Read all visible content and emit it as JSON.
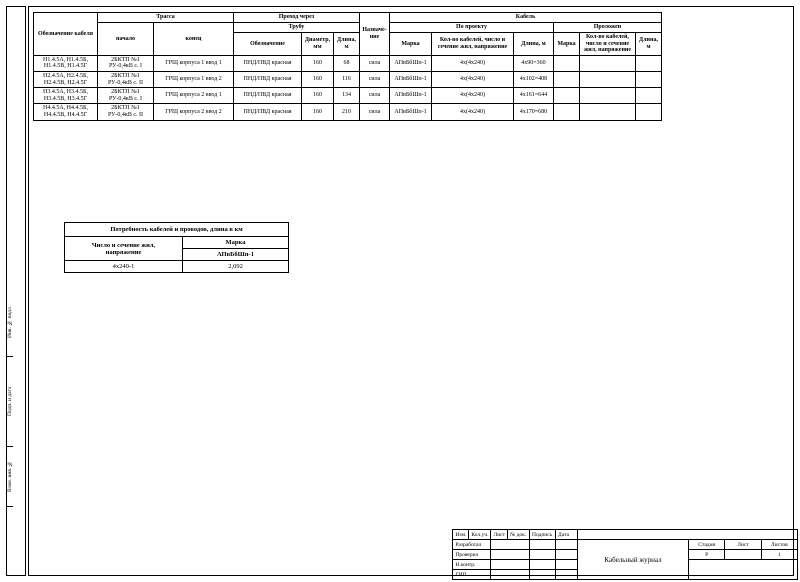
{
  "main_table": {
    "header": {
      "col_designation": "Обозначение кабеля",
      "group_route": "Трасса",
      "group_passage": "Проход через",
      "group_cable": "Кабель",
      "col_start": "начало",
      "col_end": "конец",
      "group_tube": "Трубу",
      "col_purpose": "Назначе-\nние",
      "group_project": "По проекту",
      "group_laid": "Проложен",
      "col_tube_des": "Обозначение",
      "col_diameter": "Диаметр,\nмм",
      "col_length": "Длина,\nм",
      "col_mark": "Марка",
      "col_cores": "Кол-во кабелей, число и\nсечение жил, напряжение",
      "col_len_m": "Длина, м",
      "col_mark2": "Марка",
      "col_cores2": "Кол-во кабелей,\nчисло и сечение\nжил, напряжение",
      "col_len2": "Длина,\nм"
    },
    "rows": [
      {
        "designation": "Н1.4.5А, Н1.4.5Б,\nН1.4.5В, Н1.4.5Г",
        "start": "2БКТП №1\nРУ-0,4кВ с. I",
        "end": "ГРЩ  корпуса 1 ввод 1",
        "tube": "ПНД/ПВД красная",
        "diameter": "160",
        "length": "68",
        "purpose": "сила",
        "mark": "АПвБбШп-1",
        "cores": "4х(4х240)",
        "len_m": "4х90=360"
      },
      {
        "designation": "Н2.4.5А, Н2.4.5Б,\nН2.4.5В, Н2.4.5Г",
        "start": "2БКТП №1\nРУ-0,4кВ с. II",
        "end": "ГРЩ  корпуса 1 ввод 2",
        "tube": "ПНД/ПВД красная",
        "diameter": "160",
        "length": "116",
        "purpose": "сила",
        "mark": "АПвБбШп-1",
        "cores": "4х(4х240)",
        "len_m": "4х102=408"
      },
      {
        "designation": "Н3.4.5А, Н3.4.5Б,\nН3.4.5В, Н3.4.5Г",
        "start": "2БКТП №1\nРУ-0,4кВ с. I",
        "end": "ГРЩ  корпуса 2 ввод 1",
        "tube": "ПНД/ПВД красная",
        "diameter": "160",
        "length": "134",
        "purpose": "сила",
        "mark": "АПвБбШп-1",
        "cores": "4х(4х240)",
        "len_m": "4х161=644"
      },
      {
        "designation": "Н4.4.5А, Н4.4.5Б,\nН4.4.5В, Н4.4.5Г",
        "start": "2БКТП №1\nРУ-0,4кВ с. II",
        "end": "ГРЩ  корпуса 2 ввод 2",
        "tube": "ПНД/ПВД красная",
        "diameter": "160",
        "length": "210",
        "purpose": "сила",
        "mark": "АПвБбШп-1",
        "cores": "4х(4х240)",
        "len_m": "4х170=680"
      }
    ]
  },
  "summary": {
    "title": "Потребность кабелей и проводов, длина в км",
    "col1": "Число и сечение жил,\nнапряжение",
    "col2": "Марка",
    "mark_name": "АПвБбШп-1",
    "row_label": "4х240-1",
    "row_value": "2,092"
  },
  "title_block": {
    "izm": "Изм.",
    "kol": "Кол.уч.",
    "list": "Лист",
    "ndoc": "№ док.",
    "sign": "Подпись",
    "date": "Дата",
    "razrab": "Разработал",
    "prover": "Проверил",
    "nkontr": "Н.контр.",
    "gip": "ГИП",
    "doc_title": "Кабельный журнал",
    "stadia": "Стадия",
    "list_h": "Лист",
    "listov": "Листов",
    "stadia_v": "Р",
    "listov_v": "1"
  },
  "left_labels": {
    "l1": "Инв. № подл.",
    "l2": "Подп. и дата",
    "l3": "Взам. инв. №"
  }
}
